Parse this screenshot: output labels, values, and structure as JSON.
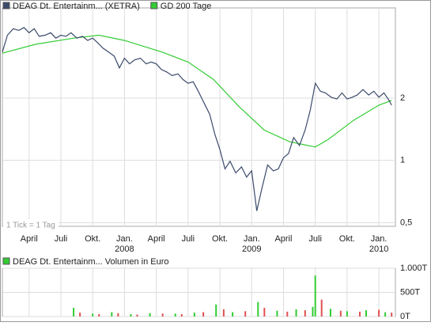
{
  "chart_data": [
    {
      "type": "line",
      "log_scale": true,
      "grid": true,
      "note": "1 Tick = 1 Tag",
      "xlim": [
        2007.04,
        2010.13
      ],
      "ylim": [
        0.48,
        5.46
      ],
      "xticks": [
        {
          "value": 2007.25,
          "label": "April"
        },
        {
          "value": 2007.5,
          "label": "Juli"
        },
        {
          "value": 2007.75,
          "label": "Okt."
        },
        {
          "value": 2008,
          "label": "Jan."
        },
        {
          "value": 2008.25,
          "label": "April"
        },
        {
          "value": 2008.5,
          "label": "Juli"
        },
        {
          "value": 2008.75,
          "label": "Okt."
        },
        {
          "value": 2009,
          "label": "Jan."
        },
        {
          "value": 2009.25,
          "label": "April"
        },
        {
          "value": 2009.5,
          "label": "Juli"
        },
        {
          "value": 2009.75,
          "label": "Okt."
        },
        {
          "value": 2010,
          "label": "Jan."
        }
      ],
      "xticks_year": [
        {
          "value": 2008,
          "label": "2008"
        },
        {
          "value": 2009,
          "label": "2009"
        },
        {
          "value": 2010,
          "label": "2010"
        }
      ],
      "yticks": [
        {
          "value": 0.5,
          "label": "0,5"
        },
        1,
        2
      ],
      "series": [
        {
          "name": "DEAG Dt. Entertainm... (XETRA)",
          "color": "#3b4a6b",
          "x": [
            2007.04,
            2007.08,
            2007.125,
            2007.17,
            2007.21,
            2007.25,
            2007.29,
            2007.33,
            2007.375,
            2007.42,
            2007.46,
            2007.5,
            2007.54,
            2007.58,
            2007.625,
            2007.67,
            2007.71,
            2007.75,
            2007.79,
            2007.83,
            2007.875,
            2007.92,
            2007.96,
            2008.0,
            2008.04,
            2008.08,
            2008.125,
            2008.17,
            2008.21,
            2008.25,
            2008.29,
            2008.33,
            2008.375,
            2008.42,
            2008.46,
            2008.5,
            2008.54,
            2008.58,
            2008.625,
            2008.67,
            2008.71,
            2008.75,
            2008.79,
            2008.83,
            2008.875,
            2008.92,
            2008.96,
            2009.0,
            2009.04,
            2009.08,
            2009.125,
            2009.17,
            2009.21,
            2009.25,
            2009.29,
            2009.33,
            2009.375,
            2009.42,
            2009.46,
            2009.5,
            2009.54,
            2009.58,
            2009.625,
            2009.67,
            2009.71,
            2009.75,
            2009.79,
            2009.83,
            2009.875,
            2009.92,
            2009.96,
            2010.0,
            2010.04,
            2010.08,
            2010.1
          ],
          "values": [
            3.34,
            4.03,
            4.33,
            4.25,
            4.39,
            4.14,
            4.33,
            3.98,
            4.03,
            4.14,
            3.9,
            4.03,
            3.98,
            4.14,
            3.9,
            3.98,
            3.8,
            3.9,
            3.7,
            3.49,
            3.34,
            3.19,
            2.8,
            3.12,
            2.93,
            3.06,
            3.12,
            2.93,
            2.99,
            2.93,
            2.75,
            2.68,
            2.57,
            2.62,
            2.46,
            2.36,
            2.4,
            2.16,
            1.9,
            1.67,
            1.34,
            1.13,
            0.91,
            0.99,
            0.87,
            0.93,
            0.83,
            0.89,
            0.57,
            0.73,
            0.95,
            0.89,
            0.91,
            1.03,
            1.08,
            1.29,
            1.18,
            1.4,
            1.74,
            2.36,
            2.16,
            2.12,
            2.02,
            1.98,
            2.12,
            1.98,
            2.02,
            2.07,
            2.2,
            2.07,
            2.16,
            2.02,
            2.12,
            1.95,
            1.85
          ]
        },
        {
          "name": "GD 200 Tage",
          "color": "#33cc33",
          "x": [
            2007.04,
            2007.3,
            2007.6,
            2007.8,
            2008.0,
            2008.3,
            2008.5,
            2008.7,
            2008.9,
            2009.1,
            2009.3,
            2009.5,
            2009.6,
            2009.8,
            2010.0,
            2010.1
          ],
          "values": [
            3.3,
            3.64,
            3.9,
            4.03,
            3.8,
            3.33,
            2.99,
            2.46,
            1.82,
            1.4,
            1.23,
            1.16,
            1.26,
            1.56,
            1.85,
            1.95
          ]
        }
      ]
    },
    {
      "type": "bar",
      "grid": true,
      "title": "DEAG Dt. Entertainm... Volumen in Euro",
      "ylim": [
        0,
        1000000
      ],
      "yticks": [
        {
          "value": 0,
          "label": "0T"
        },
        {
          "value": 500000,
          "label": "500T"
        },
        {
          "value": 1000000,
          "label": "1.000T"
        }
      ],
      "series": [
        {
          "color": "#33cc33",
          "x": [
            2007.6,
            2007.75,
            2007.9,
            2008.05,
            2008.2,
            2008.4,
            2008.55,
            2008.72,
            2008.85,
            2009.05,
            2009.2,
            2009.35,
            2009.48,
            2009.5,
            2009.62,
            2009.75,
            2009.9,
            2010.05
          ],
          "values": [
            180000,
            60000,
            90000,
            50000,
            70000,
            60000,
            80000,
            250000,
            90000,
            300000,
            120000,
            150000,
            200000,
            850000,
            160000,
            110000,
            130000,
            90000
          ]
        },
        {
          "color": "#e05050",
          "x": [
            2007.65,
            2007.8,
            2007.95,
            2008.1,
            2008.3,
            2008.45,
            2008.62,
            2008.78,
            2008.95,
            2009.1,
            2009.28,
            2009.42,
            2009.55,
            2009.7,
            2009.85,
            2010.0,
            2010.1
          ],
          "values": [
            80000,
            50000,
            70000,
            40000,
            60000,
            50000,
            90000,
            150000,
            110000,
            180000,
            100000,
            130000,
            350000,
            120000,
            100000,
            140000,
            80000
          ]
        }
      ]
    }
  ]
}
